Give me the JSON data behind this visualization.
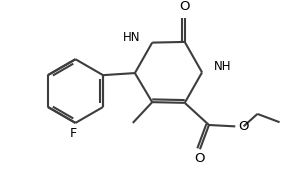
{
  "bg_color": "#ffffff",
  "bond_color": "#3d3d3d",
  "label_color": "#000000",
  "lw": 1.5,
  "figsize": [
    3.06,
    1.89
  ],
  "dpi": 100,
  "xlim": [
    -2.6,
    1.8
  ],
  "ylim": [
    -1.1,
    1.15
  ]
}
